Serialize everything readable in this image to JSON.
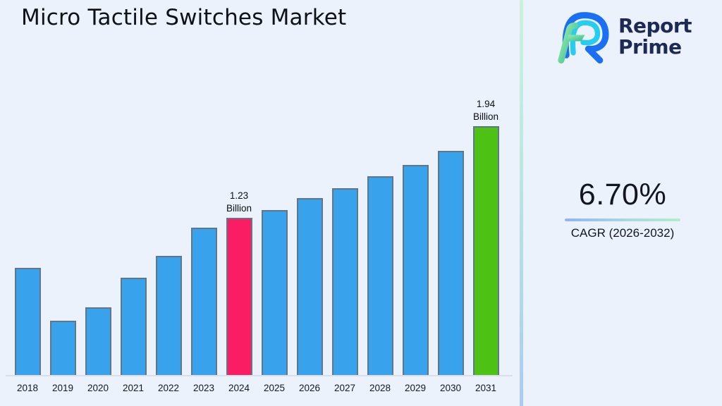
{
  "title": "Micro Tactile Switches Market",
  "logo": {
    "name": "Report Prime",
    "line1": "Report",
    "line2": "Prime",
    "text_color": "#1E2A56",
    "mark_colors": {
      "blue": "#1A6FF2",
      "cyan": "#27CDEF",
      "green_light": "#9FF0A8",
      "green_dark": "#2FB89B"
    }
  },
  "cagr": {
    "value": "6.70%",
    "label": "CAGR (2026-2032)",
    "underline_gradient": [
      "#8FB4F8",
      "#B2EFC6"
    ]
  },
  "chart_data": {
    "type": "bar",
    "title": "Micro Tactile Switches Market",
    "xlabel": "",
    "ylabel": "",
    "categories": [
      "2018",
      "2019",
      "2020",
      "2021",
      "2022",
      "2023",
      "2024",
      "2025",
      "2026",
      "2027",
      "2028",
      "2029",
      "2030",
      "2031"
    ],
    "values": [
      0.84,
      0.43,
      0.53,
      0.76,
      0.93,
      1.15,
      1.23,
      1.29,
      1.38,
      1.46,
      1.55,
      1.64,
      1.75,
      1.94
    ],
    "unit_label": "Billion",
    "ylim": [
      0,
      2.1
    ],
    "grid": false,
    "legend": false,
    "annotations": [
      {
        "category": "2024",
        "text": "1.23 Billion"
      },
      {
        "category": "2031",
        "text": "1.94 Billion"
      }
    ],
    "bar_colors": {
      "default": "#38A3EC",
      "2024": "#FB1D63",
      "2031": "#4DC214"
    }
  },
  "colors": {
    "background": "#EBF2FB",
    "title_text": "#0E1116",
    "bar_border": "#617689",
    "axis_line": "#D9DEE9",
    "divider_gradient": [
      "#CBF2DB",
      "#ABCBF1"
    ]
  }
}
